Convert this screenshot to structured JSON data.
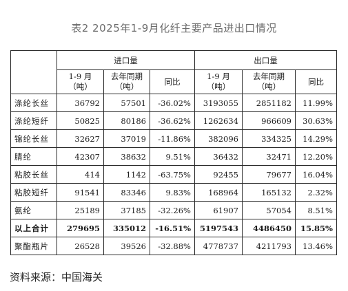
{
  "title": "表2  2025年1-9月化纤主要产品进出口情况",
  "table": {
    "group_headers": {
      "import": "进口量",
      "export": "出口量"
    },
    "sub_headers": {
      "import": [
        {
          "line1": "1-9 月",
          "line2": "（吨）"
        },
        {
          "line1": "去年同期",
          "line2": "（吨）"
        },
        {
          "line1": "同比",
          "line2": ""
        }
      ],
      "export": [
        {
          "line1": "1-9 月",
          "line2": "（吨）"
        },
        {
          "line1": "去年同期",
          "line2": "（吨）"
        },
        {
          "line1": "同比",
          "line2": ""
        }
      ]
    },
    "rows": [
      {
        "name": "涤纶长丝",
        "imp": [
          "36792",
          "57501",
          "-36.02%"
        ],
        "exp": [
          "3193055",
          "2851182",
          "11.99%"
        ],
        "bold": false
      },
      {
        "name": "涤纶短纤",
        "imp": [
          "50825",
          "80186",
          "-36.62%"
        ],
        "exp": [
          "1262634",
          "966609",
          "30.63%"
        ],
        "bold": false
      },
      {
        "name": "锦纶长丝",
        "imp": [
          "32627",
          "37019",
          "-11.86%"
        ],
        "exp": [
          "382096",
          "334325",
          "14.29%"
        ],
        "bold": false
      },
      {
        "name": "腈纶",
        "imp": [
          "42307",
          "38632",
          "9.51%"
        ],
        "exp": [
          "36432",
          "32471",
          "12.20%"
        ],
        "bold": false
      },
      {
        "name": "粘胶长丝",
        "imp": [
          "414",
          "1142",
          "-63.75%"
        ],
        "exp": [
          "92455",
          "79677",
          "16.04%"
        ],
        "bold": false
      },
      {
        "name": "粘胶短纤",
        "imp": [
          "91541",
          "83346",
          "9.83%"
        ],
        "exp": [
          "168964",
          "165132",
          "2.32%"
        ],
        "bold": false
      },
      {
        "name": "氨纶",
        "imp": [
          "25189",
          "37185",
          "-32.26%"
        ],
        "exp": [
          "61907",
          "57054",
          "8.51%"
        ],
        "bold": false
      },
      {
        "name": "以上合计",
        "imp": [
          "279695",
          "335012",
          "-16.51%"
        ],
        "exp": [
          "5197543",
          "4486450",
          "15.85%"
        ],
        "bold": true
      },
      {
        "name": "聚酯瓶片",
        "imp": [
          "26528",
          "39526",
          "-32.88%"
        ],
        "exp": [
          "4778737",
          "4211793",
          "13.46%"
        ],
        "bold": false
      }
    ]
  },
  "source": "资料来源：中国海关"
}
